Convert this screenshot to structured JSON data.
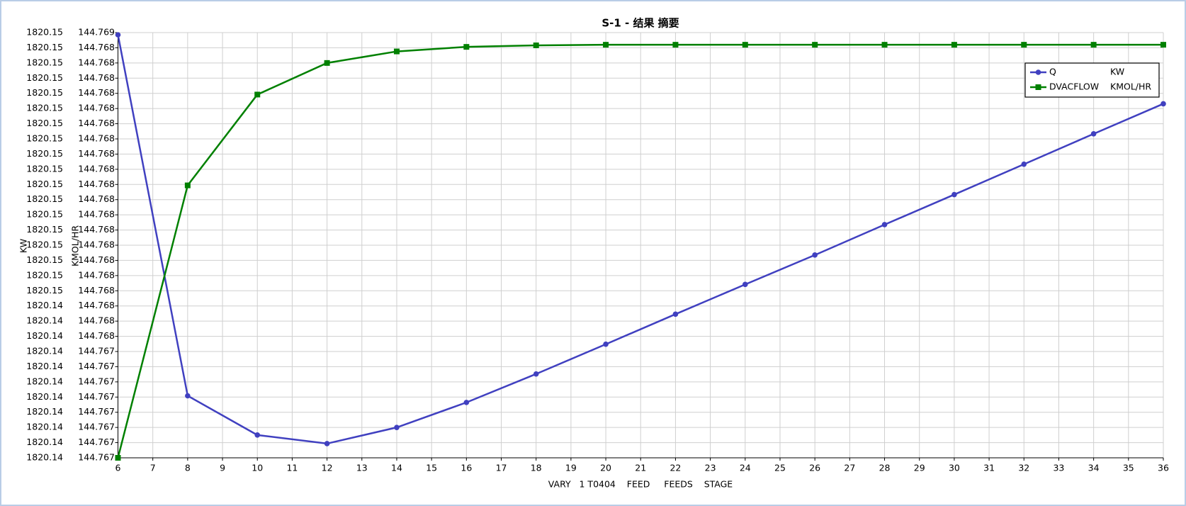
{
  "chart_data": {
    "type": "line",
    "title": "S-1 - 结果 摘要",
    "x_label": "VARY   1 T0404    FEED     FEEDS    STAGE",
    "y_label": "KW",
    "y2_label": "KMOL/HR",
    "x": [
      6,
      8,
      10,
      12,
      14,
      16,
      18,
      20,
      22,
      24,
      26,
      28,
      30,
      32,
      34,
      36
    ],
    "xlim": [
      6,
      36
    ],
    "xticks": [
      6,
      7,
      8,
      9,
      10,
      11,
      12,
      13,
      14,
      15,
      16,
      17,
      18,
      19,
      20,
      21,
      22,
      23,
      24,
      25,
      26,
      27,
      28,
      29,
      30,
      31,
      32,
      33,
      34,
      35,
      36
    ],
    "ylim": [
      1820.14,
      1820.15344
    ],
    "yticks": [
      1820.14,
      {
        "value": 1820.14048,
        "label": "1820.14"
      },
      {
        "value": 1820.14096,
        "label": "1820.14"
      },
      {
        "value": 1820.14144,
        "label": "1820.14"
      },
      {
        "value": 1820.14192,
        "label": "1820.14"
      },
      {
        "value": 1820.1424,
        "label": "1820.14"
      },
      {
        "value": 1820.14288,
        "label": "1820.14"
      },
      {
        "value": 1820.14336,
        "label": "1820.14"
      },
      {
        "value": 1820.14384,
        "label": "1820.14"
      },
      {
        "value": 1820.14432,
        "label": "1820.14"
      },
      {
        "value": 1820.1448,
        "label": "1820.14"
      },
      {
        "value": 1820.14528,
        "label": "1820.15"
      },
      {
        "value": 1820.14576,
        "label": "1820.15"
      },
      {
        "value": 1820.14624,
        "label": "1820.15"
      },
      {
        "value": 1820.14672,
        "label": "1820.15"
      },
      {
        "value": 1820.1472,
        "label": "1820.15"
      },
      {
        "value": 1820.14768,
        "label": "1820.15"
      },
      {
        "value": 1820.14816,
        "label": "1820.15"
      },
      {
        "value": 1820.14864,
        "label": "1820.15"
      },
      {
        "value": 1820.14912,
        "label": "1820.15"
      },
      {
        "value": 1820.1496,
        "label": "1820.15"
      },
      {
        "value": 1820.15008,
        "label": "1820.15"
      },
      {
        "value": 1820.15056,
        "label": "1820.15"
      },
      {
        "value": 1820.15104,
        "label": "1820.15"
      },
      {
        "value": 1820.15152,
        "label": "1820.15"
      },
      {
        "value": 1820.152,
        "label": "1820.15"
      },
      {
        "value": 1820.15248,
        "label": "1820.15"
      },
      {
        "value": 1820.15296,
        "label": "1820.15"
      },
      {
        "value": 1820.15344,
        "label": "1820.15"
      }
    ],
    "y2lim": [
      144.767125,
      144.768525
    ],
    "y2ticks": [
      {
        "value": 144.767125,
        "label": "144.767"
      },
      {
        "value": 144.767175,
        "label": "144.767"
      },
      {
        "value": 144.767225,
        "label": "144.767"
      },
      {
        "value": 144.767275,
        "label": "144.767"
      },
      {
        "value": 144.767325,
        "label": "144.767"
      },
      {
        "value": 144.767375,
        "label": "144.767"
      },
      {
        "value": 144.767425,
        "label": "144.767"
      },
      {
        "value": 144.767475,
        "label": "144.767"
      },
      {
        "value": 144.767525,
        "label": "144.768"
      },
      {
        "value": 144.767575,
        "label": "144.768"
      },
      {
        "value": 144.767625,
        "label": "144.768"
      },
      {
        "value": 144.767675,
        "label": "144.768"
      },
      {
        "value": 144.767725,
        "label": "144.768"
      },
      {
        "value": 144.767775,
        "label": "144.768"
      },
      {
        "value": 144.767825,
        "label": "144.768"
      },
      {
        "value": 144.767875,
        "label": "144.768"
      },
      {
        "value": 144.767925,
        "label": "144.768"
      },
      {
        "value": 144.767975,
        "label": "144.768"
      },
      {
        "value": 144.768025,
        "label": "144.768"
      },
      {
        "value": 144.768075,
        "label": "144.768"
      },
      {
        "value": 144.768125,
        "label": "144.768"
      },
      {
        "value": 144.768175,
        "label": "144.768"
      },
      {
        "value": 144.768225,
        "label": "144.768"
      },
      {
        "value": 144.768275,
        "label": "144.768"
      },
      {
        "value": 144.768325,
        "label": "144.768"
      },
      {
        "value": 144.768375,
        "label": "144.768"
      },
      {
        "value": 144.768425,
        "label": "144.768"
      },
      {
        "value": 144.768475,
        "label": "144.768"
      },
      {
        "value": 144.768525,
        "label": "144.769"
      }
    ],
    "grid": true,
    "legend": "upper right",
    "series": [
      {
        "name": "Q",
        "unit": "KW",
        "color": "#4040c0",
        "marker": "circle",
        "axis": "y",
        "values": [
          1820.15337,
          1820.14196,
          1820.14072,
          1820.14045,
          1820.14096,
          1820.14175,
          1820.14265,
          1820.14359,
          1820.14454,
          1820.14548,
          1820.14641,
          1820.14737,
          1820.14832,
          1820.14928,
          1820.15024,
          1820.15119
        ]
      },
      {
        "name": "DVACFLOW",
        "unit": "KMOL/HR",
        "color": "#008000",
        "marker": "square",
        "axis": "y2",
        "values": [
          144.767125,
          144.768022,
          144.768321,
          144.768425,
          144.768463,
          144.768478,
          144.768483,
          144.768485,
          144.768485,
          144.768485,
          144.768485,
          144.768485,
          144.768485,
          144.768485,
          144.768485,
          144.768485
        ]
      }
    ]
  }
}
